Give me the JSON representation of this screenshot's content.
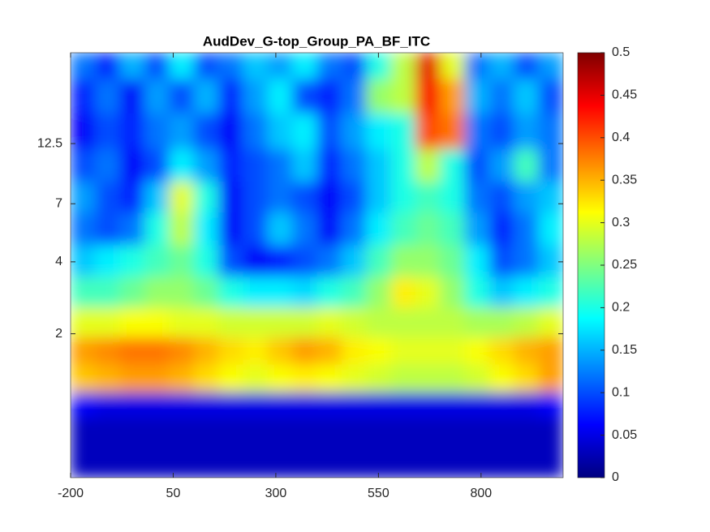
{
  "chart_data": {
    "type": "heatmap",
    "title": "AudDev_G-top_Group_PA_BF_ITC",
    "colormap": "jet",
    "yscale": "log",
    "xlim": [
      -200,
      1000
    ],
    "xticks": [
      -200,
      50,
      300,
      550,
      800
    ],
    "ylim": [
      0.5,
      30
    ],
    "yticks": [
      2,
      4,
      7,
      12.5
    ],
    "clim": [
      0,
      0.5
    ],
    "cticks": [
      0,
      0.05,
      0.1,
      0.15,
      0.2,
      0.25,
      0.3,
      0.35,
      0.4,
      0.45,
      0.5
    ],
    "x": [
      -170,
      -110,
      -50,
      10,
      70,
      130,
      190,
      250,
      310,
      370,
      430,
      490,
      550,
      610,
      670,
      730,
      790,
      850,
      910,
      970
    ],
    "y": [
      27,
      20,
      14,
      10,
      7.5,
      5.5,
      4,
      3,
      2.2,
      1.7,
      1.3,
      1,
      0.8,
      0.6
    ],
    "z": [
      [
        0.12,
        0.08,
        0.15,
        0.1,
        0.18,
        0.1,
        0.12,
        0.16,
        0.14,
        0.18,
        0.12,
        0.1,
        0.2,
        0.28,
        0.45,
        0.3,
        0.12,
        0.15,
        0.1,
        0.14
      ],
      [
        0.08,
        0.12,
        0.06,
        0.14,
        0.1,
        0.15,
        0.08,
        0.14,
        0.18,
        0.1,
        0.08,
        0.12,
        0.26,
        0.28,
        0.44,
        0.36,
        0.15,
        0.12,
        0.16,
        0.1
      ],
      [
        0.06,
        0.1,
        0.08,
        0.12,
        0.14,
        0.1,
        0.06,
        0.12,
        0.16,
        0.18,
        0.1,
        0.14,
        0.18,
        0.2,
        0.4,
        0.38,
        0.12,
        0.1,
        0.14,
        0.12
      ],
      [
        0.1,
        0.12,
        0.06,
        0.1,
        0.18,
        0.14,
        0.08,
        0.1,
        0.12,
        0.16,
        0.08,
        0.12,
        0.16,
        0.2,
        0.28,
        0.2,
        0.1,
        0.14,
        0.22,
        0.12
      ],
      [
        0.14,
        0.1,
        0.08,
        0.16,
        0.3,
        0.2,
        0.06,
        0.1,
        0.12,
        0.1,
        0.06,
        0.1,
        0.16,
        0.2,
        0.22,
        0.2,
        0.12,
        0.1,
        0.14,
        0.16
      ],
      [
        0.12,
        0.1,
        0.12,
        0.2,
        0.28,
        0.18,
        0.06,
        0.1,
        0.16,
        0.12,
        0.06,
        0.12,
        0.18,
        0.22,
        0.24,
        0.22,
        0.14,
        0.08,
        0.12,
        0.18
      ],
      [
        0.16,
        0.18,
        0.2,
        0.22,
        0.24,
        0.2,
        0.1,
        0.06,
        0.08,
        0.1,
        0.12,
        0.16,
        0.22,
        0.26,
        0.26,
        0.24,
        0.18,
        0.1,
        0.12,
        0.16
      ],
      [
        0.22,
        0.22,
        0.24,
        0.26,
        0.26,
        0.24,
        0.2,
        0.18,
        0.18,
        0.17,
        0.2,
        0.22,
        0.26,
        0.32,
        0.3,
        0.26,
        0.2,
        0.16,
        0.18,
        0.2
      ],
      [
        0.3,
        0.3,
        0.31,
        0.31,
        0.3,
        0.3,
        0.29,
        0.29,
        0.29,
        0.29,
        0.3,
        0.29,
        0.28,
        0.28,
        0.28,
        0.28,
        0.27,
        0.27,
        0.28,
        0.3
      ],
      [
        0.36,
        0.37,
        0.38,
        0.38,
        0.37,
        0.35,
        0.33,
        0.32,
        0.34,
        0.36,
        0.35,
        0.32,
        0.31,
        0.3,
        0.3,
        0.3,
        0.31,
        0.33,
        0.35,
        0.36
      ],
      [
        0.34,
        0.35,
        0.36,
        0.36,
        0.35,
        0.33,
        0.31,
        0.3,
        0.31,
        0.32,
        0.31,
        0.3,
        0.29,
        0.28,
        0.28,
        0.28,
        0.29,
        0.31,
        0.33,
        0.36
      ],
      [
        0.06,
        0.05,
        0.05,
        0.05,
        0.05,
        0.05,
        0.05,
        0.05,
        0.05,
        0.05,
        0.05,
        0.05,
        0.05,
        0.05,
        0.05,
        0.05,
        0.05,
        0.05,
        0.05,
        0.06
      ],
      [
        0.03,
        0.03,
        0.03,
        0.03,
        0.03,
        0.03,
        0.03,
        0.03,
        0.03,
        0.03,
        0.03,
        0.03,
        0.03,
        0.03,
        0.03,
        0.03,
        0.03,
        0.03,
        0.03,
        0.03
      ],
      [
        0.03,
        0.03,
        0.03,
        0.03,
        0.03,
        0.03,
        0.03,
        0.03,
        0.03,
        0.03,
        0.03,
        0.03,
        0.03,
        0.03,
        0.03,
        0.03,
        0.03,
        0.03,
        0.03,
        0.03
      ]
    ]
  }
}
